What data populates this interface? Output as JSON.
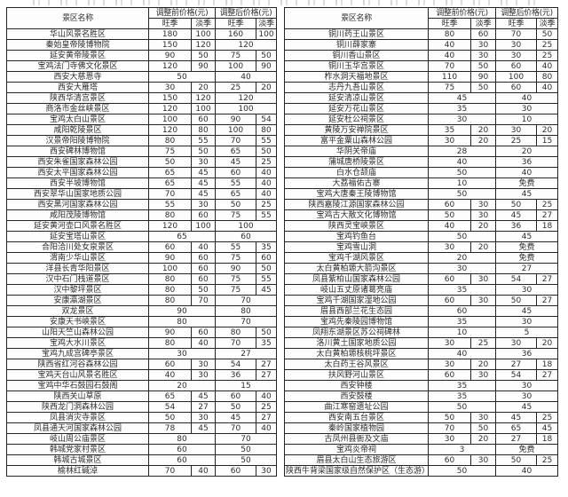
{
  "header": {
    "scenic_name": "景区名称",
    "before_label": "调整前价格(元)",
    "after_label": "调整后价格(元)",
    "peak_label": "旺季",
    "off_label": "淡季"
  },
  "free_label": "免费",
  "tables": [
    {
      "id": "left",
      "rows": [
        [
          "华山风景名胜区",
          [
            "180",
            "100"
          ],
          [
            "160",
            "100"
          ]
        ],
        [
          "秦始皇帝陵博物院",
          [
            "150",
            "120"
          ],
          [
            "120"
          ]
        ],
        [
          "延安黄帝陵景区",
          [
            "90",
            "50"
          ],
          [
            "75",
            "50"
          ]
        ],
        [
          "宝鸡法门寺佛文化景区",
          [
            "120",
            "90"
          ],
          [
            "100",
            "90"
          ]
        ],
        [
          "西安大慈恩寺",
          [
            "50"
          ],
          [
            "40"
          ]
        ],
        [
          "西安大雁塔",
          [
            "30",
            "20"
          ],
          [
            "25",
            "20"
          ]
        ],
        [
          "陕西华清宫景区",
          [
            "150",
            "120"
          ],
          [
            "120"
          ]
        ],
        [
          "商洛市金丝峡景区",
          [
            "120",
            "100"
          ],
          [
            "100"
          ]
        ],
        [
          "宝鸡太白山景区",
          [
            "100",
            "60"
          ],
          [
            "90",
            "54"
          ]
        ],
        [
          "咸阳乾陵景区",
          [
            "120",
            "80"
          ],
          [
            "100",
            "80"
          ]
        ],
        [
          "汉景帝阳陵博物院",
          [
            "80",
            "55"
          ],
          [
            "70",
            "55"
          ]
        ],
        [
          "西安碑林博物馆",
          [
            "75",
            "50"
          ],
          [
            "65",
            "50"
          ]
        ],
        [
          "西安朱雀国家森林公园",
          [
            "50",
            "30"
          ],
          [
            "45",
            "25"
          ]
        ],
        [
          "西安太平国家森林公园",
          [
            "65",
            "45"
          ],
          [
            "60",
            "40"
          ]
        ],
        [
          "西安半坡博物馆",
          [
            "65",
            "45"
          ],
          [
            "55",
            "40"
          ]
        ],
        [
          "西安翠华山国家地质公园",
          [
            "70",
            "45"
          ],
          [
            "65",
            "40"
          ]
        ],
        [
          "西安黑河国家森林公园",
          [
            "55",
            "30"
          ],
          [
            "50",
            "25"
          ]
        ],
        [
          "咸阳茂陵博物馆",
          [
            "80",
            "60"
          ],
          [
            "75",
            "55"
          ]
        ],
        [
          "延安黄河壶口风景名胜区",
          [
            "120",
            "100"
          ],
          [
            "100"
          ]
        ],
        [
          "延安宝塔山景区",
          [
            "65"
          ],
          [
            "60"
          ]
        ],
        [
          "合阳洽川处女泉景区",
          [
            "60",
            "40"
          ],
          [
            "55",
            "35"
          ]
        ],
        [
          "渭南少华山景区",
          [
            "90",
            "60"
          ],
          [
            "75",
            "60"
          ]
        ],
        [
          "洋县长青华阳景区",
          [
            "100",
            "60"
          ],
          [
            "90",
            "50"
          ]
        ],
        [
          "汉中石门栈道景区",
          [
            "80",
            "60"
          ],
          [
            "75",
            "55"
          ]
        ],
        [
          "汉中黎坪景区",
          [
            "80",
            "50"
          ],
          [
            "75",
            "45"
          ]
        ],
        [
          "安康瀛湖景区",
          [
            "80",
            "70"
          ],
          [
            "70"
          ]
        ],
        [
          "双龙景区",
          [
            "90"
          ],
          [
            "80"
          ]
        ],
        [
          "安康天书峡景区",
          [
            "80"
          ],
          [
            "70"
          ]
        ],
        [
          "山阳天竺山森林公园",
          [
            "90",
            "60"
          ],
          [
            "80",
            "50"
          ]
        ],
        [
          "宝鸡大水川景区",
          [
            "80",
            "40"
          ],
          [
            "70",
            "35"
          ]
        ],
        [
          "宝鸡九成宫碑亭景区",
          [
            "30"
          ],
          [
            "27"
          ]
        ],
        [
          "陕西省红河谷森林公园",
          [
            "60",
            "30"
          ],
          [
            "54",
            "27"
          ]
        ],
        [
          "宝鸡天台山风景名胜区",
          [
            "40",
            "30"
          ],
          [
            "36",
            "27"
          ]
        ],
        [
          "宝鸡中华石鼓园石鼓阁",
          [
            "20"
          ],
          [
            "15"
          ]
        ],
        [
          "陕西关山草原",
          [
            "65",
            "45"
          ],
          [
            "60",
            "40"
          ]
        ],
        [
          "陕西龙门洞森林公园",
          [
            "54",
            "27"
          ],
          [
            "50",
            "25"
          ]
        ],
        [
          "凤县消灾寺景区",
          [
            "50",
            "30"
          ],
          [
            "45",
            "27"
          ]
        ],
        [
          "凤县通天河国家森林公园",
          [
            "78",
            "45"
          ],
          [
            "70",
            "40"
          ]
        ],
        [
          "岐山周公庙景区",
          [
            "80"
          ],
          [
            "70"
          ]
        ],
        [
          "韩城党家村景区",
          [
            "60"
          ],
          [
            "50"
          ]
        ],
        [
          "韩城古城景区",
          [
            "60"
          ],
          [
            "50"
          ]
        ],
        [
          "榆林红碱淖",
          [
            "70",
            "40"
          ],
          [
            "60",
            "30"
          ]
        ]
      ]
    },
    {
      "id": "right",
      "rows": [
        [
          "铜川药王山景区",
          [
            "80",
            "60"
          ],
          [
            "70",
            "50"
          ]
        ],
        [
          "铜川薛家寨",
          [
            "40",
            "30"
          ],
          [
            "30",
            "25"
          ]
        ],
        [
          "铜川香山景区",
          [
            "40",
            "30"
          ],
          [
            "30",
            "25"
          ]
        ],
        [
          "铜川玉华宫景区",
          [
            "70",
            "50"
          ],
          [
            "60",
            "40"
          ]
        ],
        [
          "柞水洞天福地景区",
          [
            "110",
            "90"
          ],
          [
            "100",
            "80"
          ]
        ],
        [
          "志丹九吾山景区",
          [
            "75",
            "50"
          ],
          [
            "60",
            "40"
          ]
        ],
        [
          "延安清凉山景区",
          [
            "45"
          ],
          [
            "40"
          ]
        ],
        [
          "延安万花山景区",
          [
            "35"
          ],
          [
            "30"
          ]
        ],
        [
          "延安杜公祠景区",
          [
            "30"
          ],
          [
            "10"
          ]
        ],
        [
          "黄陵万安禅院景区",
          [
            "35",
            "20"
          ],
          [
            "30",
            "20"
          ]
        ],
        [
          "富平金粟山森林公园",
          [
            "30",
            "20"
          ],
          [
            "25",
            "15"
          ]
        ],
        [
          "华阴关帝庙",
          [
            "28"
          ],
          [
            "20"
          ]
        ],
        [
          "蒲城唐桥陵景区",
          [
            "40"
          ],
          [
            "36"
          ]
        ],
        [
          "白水仓颉庙",
          [
            "50"
          ],
          [
            "40"
          ]
        ],
        [
          "大荔福佑古寨",
          [
            "10"
          ],
          [
            "免费"
          ]
        ],
        [
          "宝鸡大唐秦王陵博物馆",
          [
            "50"
          ],
          [
            "45"
          ]
        ],
        [
          "陕西嘉陵江源国家森林公园",
          [
            "60",
            "30"
          ],
          [
            "50",
            "25"
          ]
        ],
        [
          "宝鸡古大散文化博物馆",
          [
            "50",
            "30"
          ],
          [
            "45",
            "27"
          ]
        ],
        [
          "陕西灵宝峡景区",
          [
            "40",
            "20"
          ],
          [
            "36",
            "18"
          ]
        ],
        [
          "宝鸡钓鱼台",
          [
            "50"
          ],
          [
            "45"
          ]
        ],
        [
          "宝鸡雪山洞",
          [
            "30",
            "20"
          ],
          [
            "免费"
          ]
        ],
        [
          "宝鸡千湖风景区",
          [
            "20"
          ],
          [
            "免费"
          ]
        ],
        [
          "太白黄柏塬大箭沟景区",
          [
            "30"
          ],
          [
            "27"
          ]
        ],
        [
          "凤县紫柏山国家森林公园",
          [
            "60",
            "30"
          ],
          [
            "54",
            "27"
          ]
        ],
        [
          "岐山五丈原诸葛亮庙",
          [
            "35"
          ],
          [
            "30"
          ]
        ],
        [
          "宝鸡千湖国家湿地公园",
          [
            "60",
            "30"
          ],
          [
            "50",
            "27"
          ]
        ],
        [
          "眉县西部兰花生态园",
          [
            "60"
          ],
          [
            "45"
          ]
        ],
        [
          "宝鸡先秦陵园博物馆",
          [
            "35"
          ],
          [
            "30"
          ]
        ],
        [
          "凤翔东湖景区苏公祠碑林",
          [
            "10"
          ],
          [
            "5"
          ]
        ],
        [
          "洛川黄土国家地质公园",
          [
            "30",
            "25"
          ],
          [
            "30",
            "20"
          ]
        ],
        [
          "太白黄柏塬核桃坪景区",
          [
            "40"
          ],
          [
            "36"
          ]
        ],
        [
          "太白药王谷风景区",
          [
            "30",
            "20"
          ],
          [
            "27",
            "18"
          ]
        ],
        [
          "扶风野河山景区",
          [
            "60",
            "30"
          ],
          [
            "54",
            "27"
          ]
        ],
        [
          "西安钟楼",
          [
            "35"
          ],
          [
            "30"
          ]
        ],
        [
          "西安鼓楼",
          [
            "35"
          ],
          [
            "30"
          ]
        ],
        [
          "曲江寒窑遗址公园",
          [
            "50"
          ],
          [
            "45"
          ]
        ],
        [
          "西安南五台景区",
          [
            "50",
            "30"
          ],
          [
            "45",
            "25"
          ]
        ],
        [
          "秦岭国家植物园",
          [
            "70",
            "50"
          ],
          [
            "65",
            "45"
          ]
        ],
        [
          "古凤州县衙及文庙",
          [
            "30",
            "20"
          ],
          [
            "27",
            "18"
          ]
        ],
        [
          "宝鸡炎帝祠",
          [
            "3"
          ],
          [
            "免费"
          ]
        ],
        [
          "眉县太白山生态旅游区",
          [
            "60",
            "30"
          ],
          [
            "50",
            "25"
          ]
        ],
        [
          "陕西牛背梁国家级自然保护区（生态游）",
          [
            "50"
          ],
          [
            "40"
          ]
        ]
      ]
    }
  ]
}
